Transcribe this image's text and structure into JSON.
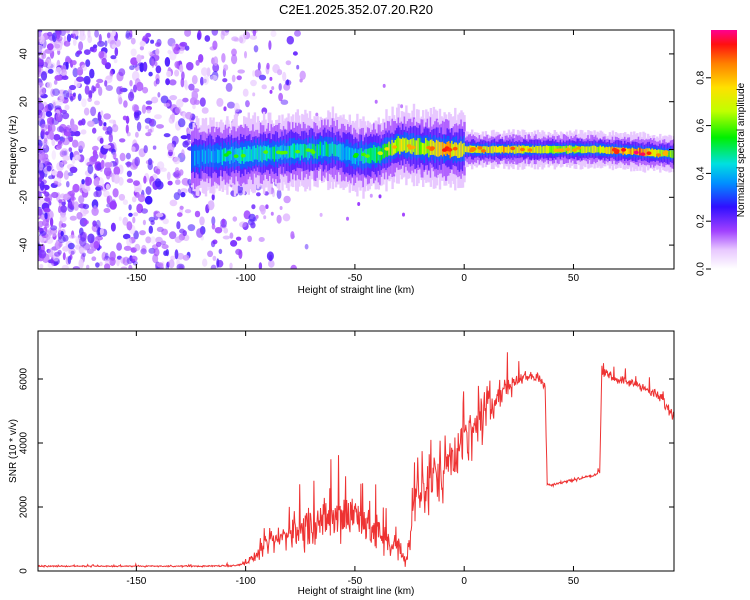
{
  "title": "C2E1.2025.352.07.20.R20",
  "chart_data": [
    {
      "type": "heatmap",
      "xlabel": "Height of straight line (km)",
      "ylabel": "Frequency (Hz)",
      "xlim": [
        -195,
        96
      ],
      "ylim": [
        -50,
        50
      ],
      "xticks": [
        -150,
        -100,
        -50,
        0,
        50
      ],
      "yticks": [
        -40,
        -20,
        0,
        20,
        40
      ],
      "colorbar": {
        "label": "Normalized spectral amplitude",
        "range": [
          0,
          1
        ],
        "ticks": [
          0.0,
          0.2,
          0.4,
          0.6,
          0.8
        ]
      },
      "ridge": {
        "description": "narrow high-amplitude band near 0 Hz",
        "x": [
          -120,
          -100,
          -80,
          -60,
          -50,
          -40,
          -30,
          -20,
          -10,
          0,
          20,
          40,
          60,
          80,
          96
        ],
        "freq": [
          -3,
          -2,
          -1,
          0,
          -3,
          -2,
          2,
          1,
          0,
          0,
          0,
          0,
          0,
          -1,
          -2
        ],
        "amplitude": [
          0.35,
          0.45,
          0.45,
          0.45,
          0.4,
          0.5,
          0.7,
          0.65,
          0.8,
          0.7,
          0.75,
          0.65,
          0.7,
          0.85,
          0.6
        ]
      },
      "noise": {
        "description": "scattered low-amplitude speckle",
        "x_range": [
          -195,
          -100
        ],
        "amplitude_range": [
          0.05,
          0.25
        ]
      }
    },
    {
      "type": "line",
      "xlabel": "Height of straight line (km)",
      "ylabel": "SNR (10 * v/v)",
      "xlim": [
        -195,
        96
      ],
      "ylim": [
        0,
        7500
      ],
      "xticks": [
        -150,
        -100,
        -50,
        0,
        50
      ],
      "yticks": [
        0,
        2000,
        4000,
        6000
      ],
      "series": [
        {
          "name": "SNR",
          "color": "#ee3333",
          "x": [
            -195,
            -180,
            -160,
            -140,
            -120,
            -105,
            -100,
            -95,
            -90,
            -80,
            -70,
            -60,
            -50,
            -45,
            -40,
            -35,
            -30,
            -27,
            -22,
            -15,
            -10,
            -5,
            0,
            5,
            10,
            15,
            20,
            25,
            30,
            35,
            37,
            38,
            40,
            50,
            60,
            62,
            63,
            70,
            80,
            90,
            96
          ],
          "y": [
            150,
            150,
            150,
            150,
            150,
            170,
            250,
            500,
            800,
            1200,
            1400,
            1600,
            1800,
            1500,
            1200,
            1000,
            700,
            300,
            2000,
            2800,
            3200,
            3800,
            4000,
            4400,
            5000,
            5400,
            5800,
            6000,
            6100,
            6000,
            5800,
            2700,
            2700,
            2850,
            3000,
            3100,
            6200,
            6000,
            5800,
            5400,
            4800
          ],
          "noise_amplitude": [
            30,
            30,
            30,
            30,
            30,
            40,
            80,
            250,
            450,
            800,
            1000,
            1100,
            1200,
            1100,
            900,
            800,
            600,
            250,
            1300,
            1500,
            1500,
            1400,
            1300,
            1200,
            1200,
            1000,
            600,
            300,
            250,
            200,
            200,
            80,
            80,
            80,
            80,
            80,
            200,
            200,
            200,
            250,
            300
          ]
        }
      ]
    }
  ]
}
